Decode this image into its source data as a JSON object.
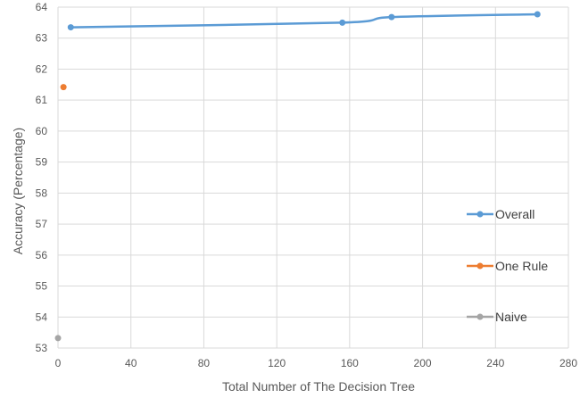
{
  "chart_data": {
    "type": "scatter",
    "title": "",
    "xlabel": "Total Number of The Decision Tree",
    "ylabel": "Accuracy (Percentage)",
    "xlim": [
      0,
      280
    ],
    "ylim": [
      53,
      64
    ],
    "x_ticks": [
      0,
      40,
      80,
      120,
      160,
      200,
      240,
      280
    ],
    "x_tick_labels": [
      "0",
      "40",
      "80",
      "120",
      "160",
      "200",
      "240",
      "280"
    ],
    "y_ticks": [
      53,
      54,
      55,
      56,
      57,
      58,
      59,
      60,
      61,
      62,
      63,
      64
    ],
    "y_tick_labels": [
      "53",
      "54",
      "55",
      "56",
      "57",
      "58",
      "59",
      "60",
      "61",
      "62",
      "63",
      "64"
    ],
    "grid": true,
    "legend_position": "right",
    "series": [
      {
        "name": "Overall",
        "color": "#5B9BD5",
        "smooth": true,
        "points": [
          [
            7,
            63.35
          ],
          [
            156,
            63.5
          ],
          [
            183,
            63.68
          ],
          [
            263,
            63.77
          ]
        ]
      },
      {
        "name": "One Rule",
        "color": "#ED7D31",
        "smooth": false,
        "points": [
          [
            3,
            61.42
          ]
        ]
      },
      {
        "name": "Naive",
        "color": "#A5A5A5",
        "smooth": false,
        "points": [
          [
            0,
            53.32
          ]
        ]
      }
    ]
  }
}
